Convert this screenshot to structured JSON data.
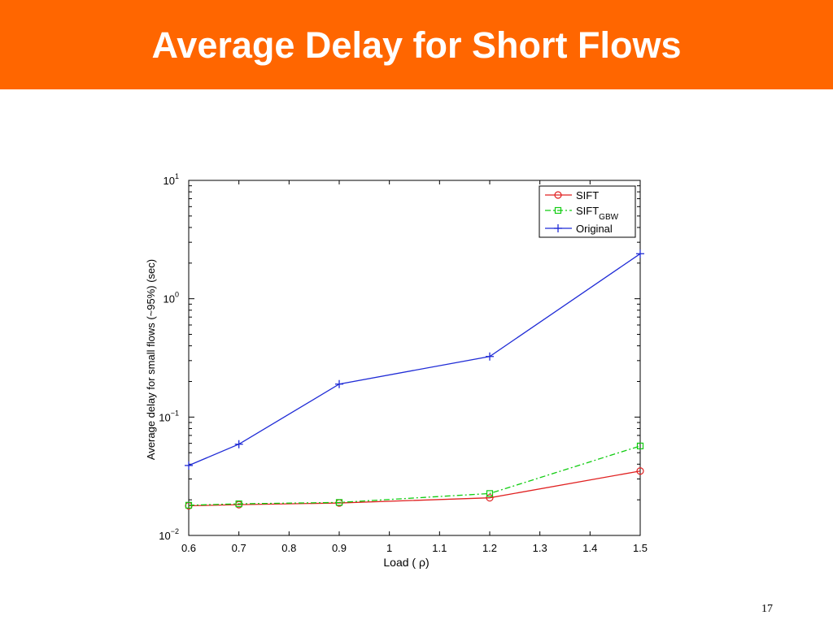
{
  "slide": {
    "title": "Average Delay for Short Flows",
    "number": "17"
  },
  "colors": {
    "title_bar": "#ff6600",
    "sift": "#e02020",
    "sift_gbw": "#11cc11",
    "original": "#1f2bd6"
  },
  "chart_data": {
    "type": "line",
    "title": "",
    "xlabel": "Load ( ρ)",
    "ylabel": "Average delay for small flows (~95%) (sec)",
    "x_ticks": [
      0.6,
      0.7,
      0.8,
      0.9,
      1,
      1.1,
      1.2,
      1.3,
      1.4,
      1.5
    ],
    "x_tick_labels": [
      "0.6",
      "0.7",
      "0.8",
      "0.9",
      "1",
      "1.1",
      "1.2",
      "1.3",
      "1.4",
      "1.5"
    ],
    "xlim": [
      0.6,
      1.5
    ],
    "y_scale": "log",
    "ylim": [
      0.01,
      10
    ],
    "y_ticks": [
      {
        "value": 10,
        "base": "10",
        "exp": "1"
      },
      {
        "value": 1,
        "base": "10",
        "exp": "0"
      },
      {
        "value": 0.1,
        "base": "10",
        "exp": "−1"
      },
      {
        "value": 0.01,
        "base": "10",
        "exp": "−2"
      }
    ],
    "x": [
      0.6,
      0.7,
      0.9,
      1.2,
      1.5
    ],
    "series": [
      {
        "name": "SIFT",
        "legend_main": "SIFT",
        "legend_sub": "",
        "values": [
          0.0178,
          0.0182,
          0.0188,
          0.0208,
          0.035
        ],
        "marker": "circle",
        "dash": "solid",
        "color": "#e02020"
      },
      {
        "name": "SIFT GBW",
        "legend_main": "SIFT",
        "legend_sub": "GBW",
        "values": [
          0.018,
          0.0185,
          0.019,
          0.0226,
          0.057
        ],
        "marker": "square",
        "dash": "dashdot",
        "color": "#11cc11"
      },
      {
        "name": "Original",
        "legend_main": "Original",
        "legend_sub": "",
        "values": [
          0.039,
          0.059,
          0.19,
          0.325,
          2.4
        ],
        "marker": "plus",
        "dash": "solid",
        "color": "#1f2bd6"
      }
    ],
    "grid": false,
    "legend": "top-right"
  }
}
